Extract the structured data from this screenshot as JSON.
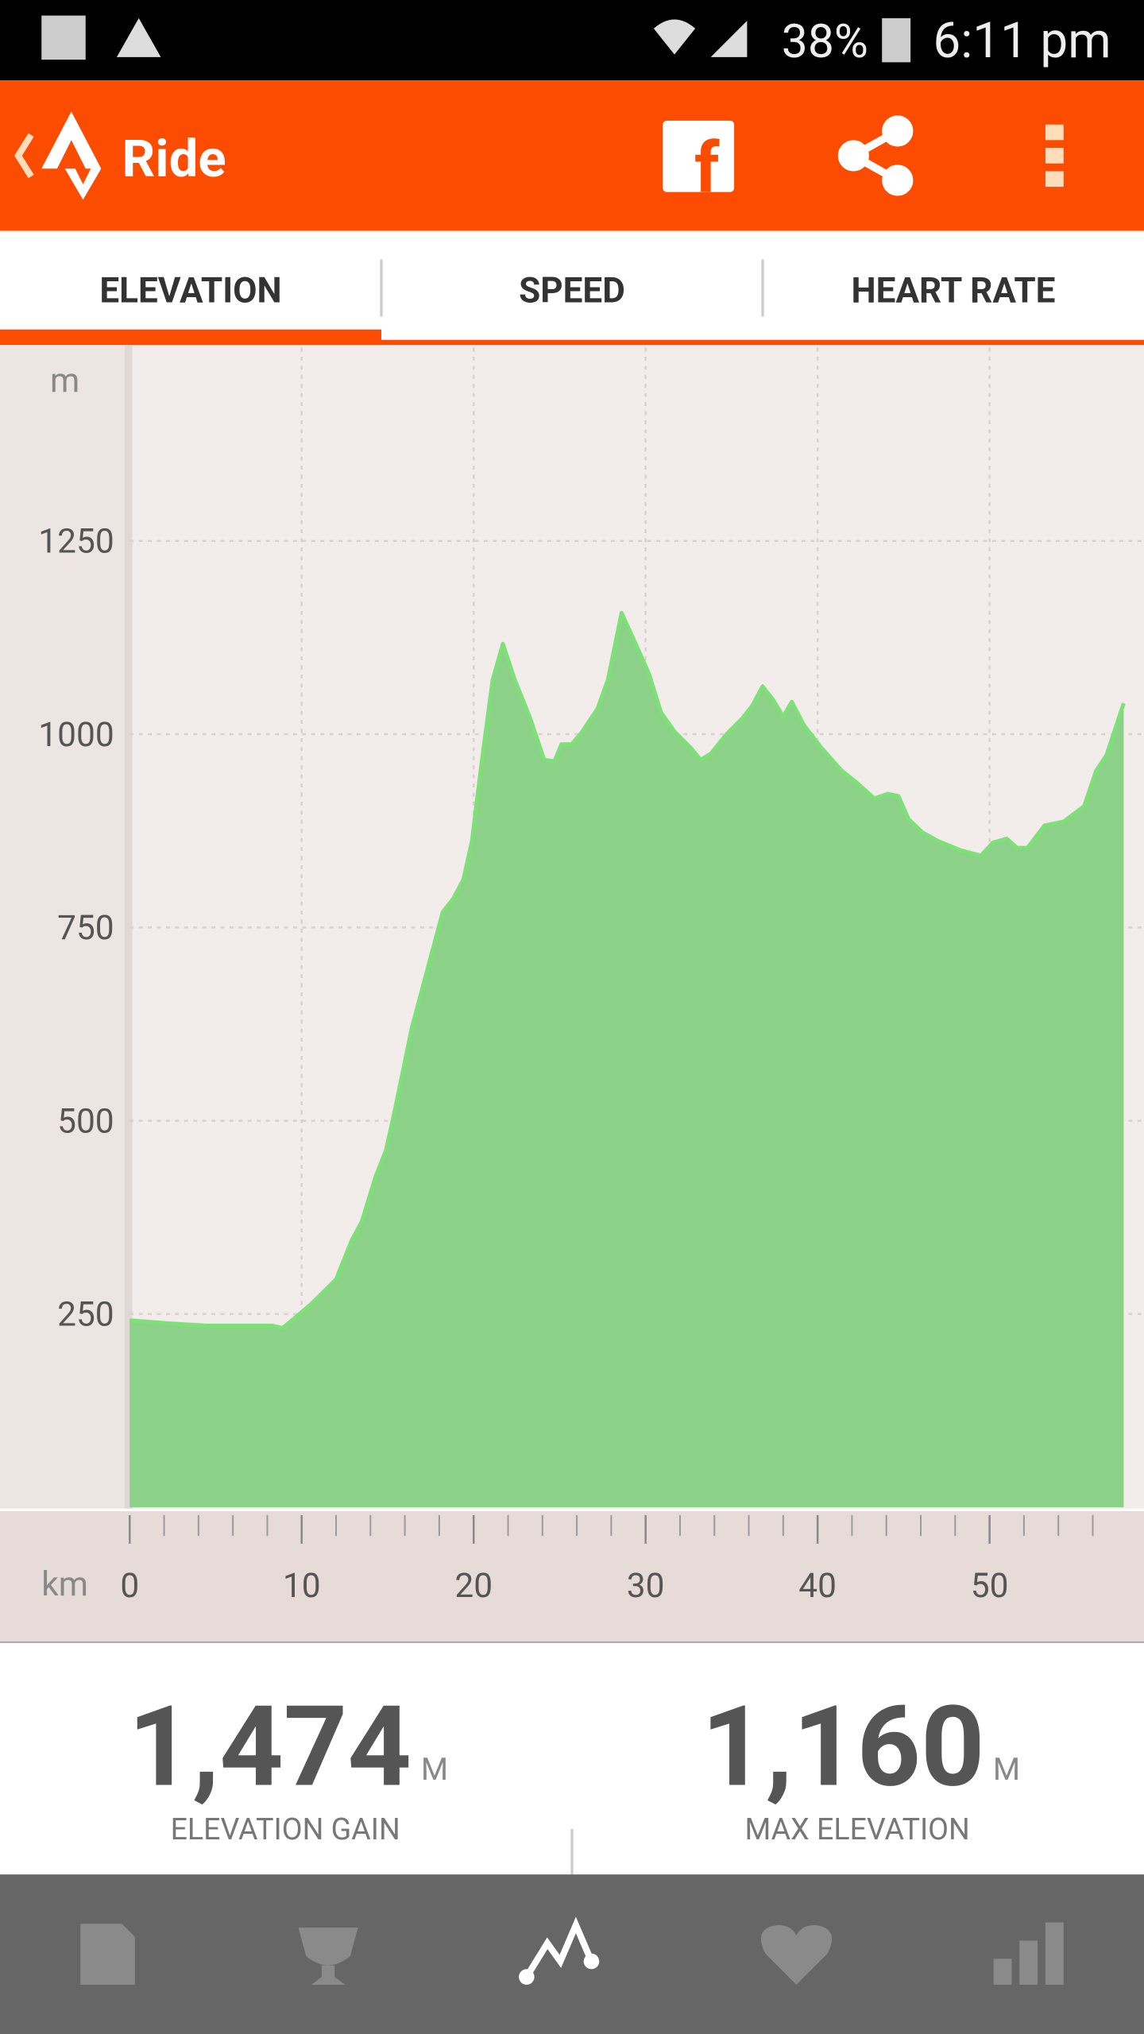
{
  "status_bar": {
    "battery": "38%",
    "time": "6:11 pm"
  },
  "app_bar": {
    "title": "Ride"
  },
  "tabs": [
    "ELEVATION",
    "SPEED",
    "HEART RATE"
  ],
  "chart_data": {
    "type": "area",
    "y_unit": "m",
    "x_unit": "km",
    "x": [
      0,
      2.3,
      4.5,
      8.3,
      8.9,
      10.5,
      12,
      12.9,
      13.5,
      14.3,
      14.9,
      15.4,
      16.4,
      17.3,
      18.2,
      18.8,
      19.4,
      19.9,
      20.5,
      21.1,
      21.7,
      22.4,
      23.3,
      24.1,
      24.7,
      25.1,
      25.7,
      26.3,
      27.2,
      27.8,
      28.6,
      29.3,
      30.2,
      30.9,
      31.7,
      32.6,
      33.2,
      33.8,
      34.7,
      35.6,
      36.2,
      36.8,
      37.4,
      38.0,
      38.5,
      39.2,
      40.2,
      41.4,
      42.3,
      43.3,
      44.1,
      44.7,
      45.3,
      46.1,
      47.0,
      48.3,
      49.5,
      50.2,
      51.0,
      51.6,
      52.2,
      53.2,
      54.3,
      55.5,
      56.2,
      56.8,
      57.8
    ],
    "values": [
      242,
      238,
      235,
      235,
      232,
      262,
      295,
      345,
      370,
      428,
      462,
      512,
      620,
      695,
      770,
      787,
      812,
      862,
      970,
      1070,
      1117,
      1070,
      1020,
      967,
      965,
      987,
      987,
      1003,
      1033,
      1070,
      1157,
      1123,
      1078,
      1028,
      1003,
      983,
      967,
      975,
      1000,
      1020,
      1037,
      1062,
      1045,
      1023,
      1042,
      1012,
      983,
      953,
      937,
      917,
      923,
      920,
      890,
      873,
      862,
      850,
      843,
      860,
      865,
      853,
      853,
      882,
      887,
      907,
      953,
      973,
      1040
    ],
    "color": "#8cd188",
    "line_color": "#7fe07a",
    "xlim": [
      0,
      58
    ],
    "ylim": [
      0,
      1500
    ],
    "xticks": [
      0,
      10,
      20,
      30,
      40,
      50
    ],
    "xticks_minor": [
      2,
      4,
      6,
      8,
      12,
      14,
      16,
      18,
      22,
      24,
      26,
      28,
      32,
      34,
      36,
      38,
      42,
      44,
      46,
      48,
      52,
      54,
      56
    ],
    "yticks": [
      250,
      500,
      750,
      1000,
      1250
    ],
    "grid": true
  },
  "stats": [
    {
      "value": "1,474",
      "unit": "M",
      "label": "ELEVATION GAIN"
    },
    {
      "value": "1,160",
      "unit": "M",
      "label": "MAX ELEVATION"
    }
  ]
}
